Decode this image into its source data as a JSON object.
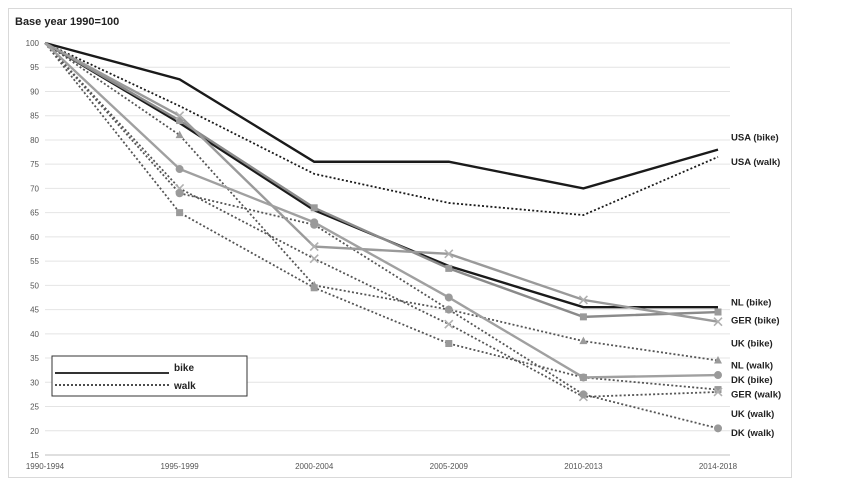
{
  "chart_data": {
    "type": "line",
    "title": "Base year 1990=100",
    "categories": [
      "1990-1994",
      "1995-1999",
      "2000-2004",
      "2005-2009",
      "2010-2013",
      "2014-2018"
    ],
    "ylim": [
      15,
      100
    ],
    "yticks": [
      15,
      20,
      25,
      30,
      35,
      40,
      45,
      50,
      55,
      60,
      65,
      70,
      75,
      80,
      85,
      90,
      95,
      100
    ],
    "grid": true,
    "legend": {
      "position": "bottom-left",
      "entries": [
        {
          "label": "bike",
          "style": "solid"
        },
        {
          "label": "walk",
          "style": "dotted"
        }
      ]
    },
    "series": [
      {
        "name": "USA (bike)",
        "style": "solid",
        "color": "#1a1a1a",
        "marker": "none",
        "values": [
          100,
          92.5,
          75.5,
          75.5,
          70,
          78
        ]
      },
      {
        "name": "USA (walk)",
        "style": "dotted",
        "color": "#1a1a1a",
        "marker": "none",
        "values": [
          100,
          87,
          73,
          67,
          64.5,
          76.5
        ]
      },
      {
        "name": "NL (bike)",
        "style": "solid",
        "color": "#1a1a1a",
        "marker": "none",
        "values": [
          100,
          83.5,
          65.5,
          54,
          45.5,
          45.5
        ]
      },
      {
        "name": "GER (bike)",
        "style": "solid",
        "color": "#8a8a8a",
        "marker": "square",
        "values": [
          100,
          84,
          66,
          53.5,
          43.5,
          44.5
        ]
      },
      {
        "name": "UK (bike)",
        "style": "solid",
        "color": "#9a9a9a",
        "marker": "x",
        "values": [
          100,
          85,
          58,
          56.5,
          47,
          42.5
        ]
      },
      {
        "name": "DK (bike)",
        "style": "solid",
        "color": "#a0a0a0",
        "marker": "circle",
        "values": [
          100,
          74,
          63,
          47.5,
          31,
          31.5
        ]
      },
      {
        "name": "NL (walk)",
        "style": "dotted",
        "color": "#555555",
        "marker": "triangle",
        "values": [
          100,
          81,
          50,
          45,
          38.5,
          34.5
        ]
      },
      {
        "name": "GER (walk)",
        "style": "dotted",
        "color": "#555555",
        "marker": "square",
        "values": [
          100,
          65,
          49.5,
          38,
          31,
          28.5
        ]
      },
      {
        "name": "UK (walk)",
        "style": "dotted",
        "color": "#555555",
        "marker": "x",
        "values": [
          100,
          70,
          55.5,
          42,
          27,
          28
        ]
      },
      {
        "name": "DK (walk)",
        "style": "dotted",
        "color": "#555555",
        "marker": "circle",
        "values": [
          100,
          69,
          62.5,
          45,
          27.5,
          20.5
        ]
      }
    ],
    "labels": [
      {
        "text": "USA (bike)",
        "anchor_value": 80.5
      },
      {
        "text": "USA (walk)",
        "anchor_value": 75.5
      },
      {
        "text": "NL (bike)",
        "anchor_value": 46.5
      },
      {
        "text": "GER (bike)",
        "anchor_value": 42.8
      },
      {
        "text": "UK (bike)",
        "anchor_value": 38
      },
      {
        "text": "NL (walk)",
        "anchor_value": 33.5
      },
      {
        "text": "DK  (bike)",
        "anchor_value": 30.5
      },
      {
        "text": "GER (walk)",
        "anchor_value": 27.5
      },
      {
        "text": "UK (walk)",
        "anchor_value": 23.5
      },
      {
        "text": "DK  (walk)",
        "anchor_value": 19.5
      }
    ]
  }
}
